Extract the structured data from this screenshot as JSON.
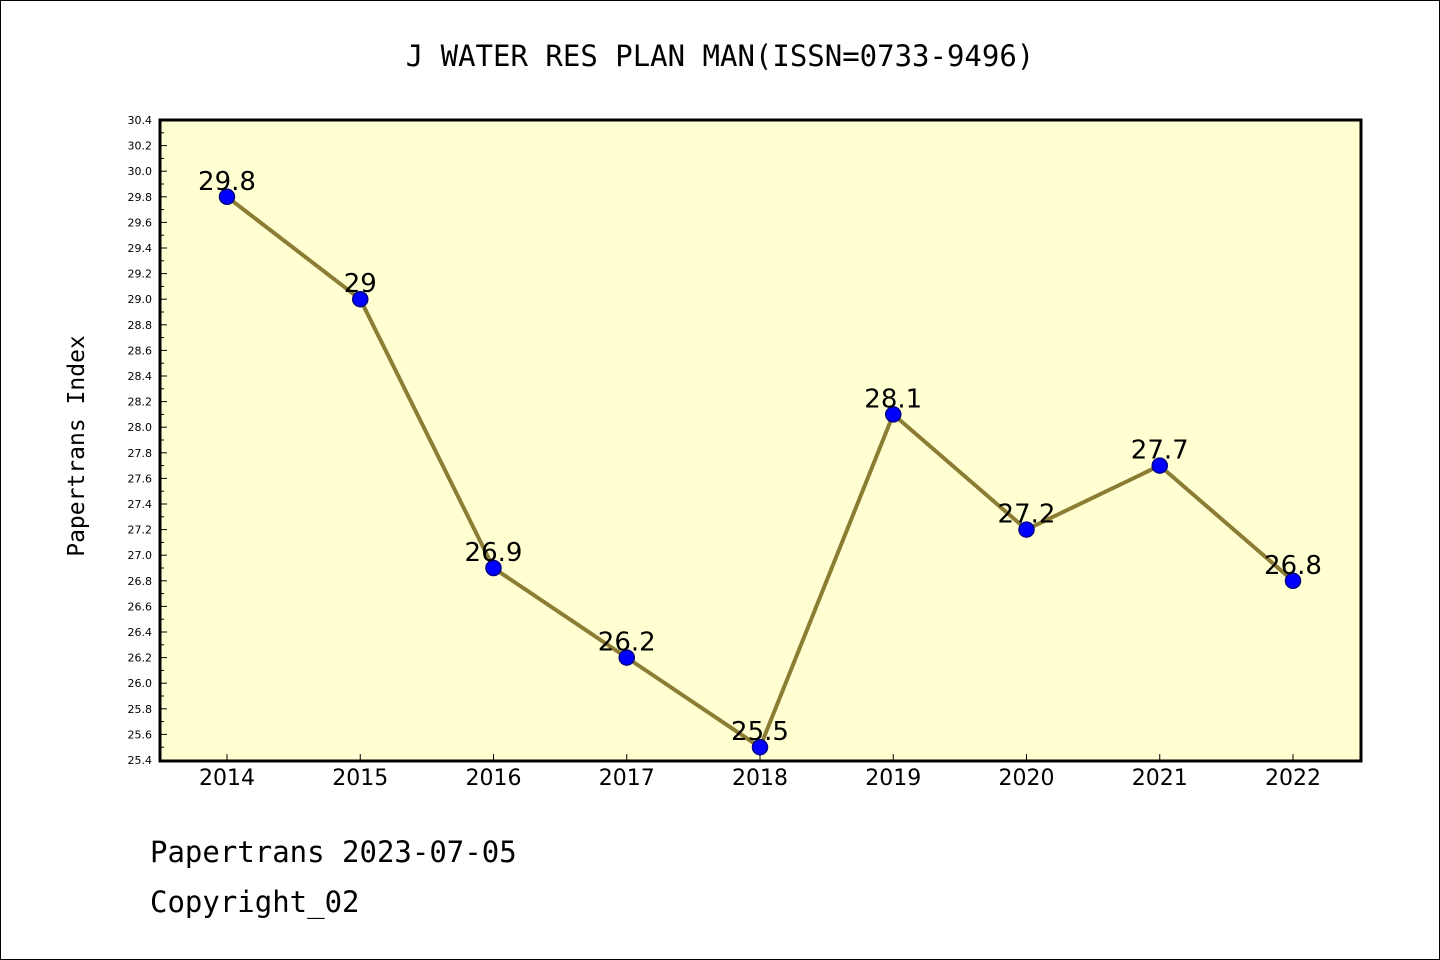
{
  "colors": {
    "plot_background": "#ffffd2",
    "line": "#8b7d34",
    "marker": "#0000ff",
    "marker_edge": "#00008b",
    "axis": "#000000"
  },
  "footer": {
    "date_text": "Papertrans 2023-07-05",
    "copyright_text": "Copyright_02"
  },
  "chart_data": {
    "type": "line",
    "title": "J WATER RES PLAN MAN(ISSN=0733-9496)",
    "xlabel": "",
    "ylabel": "Papertrans Index",
    "categories": [
      "2014",
      "2015",
      "2016",
      "2017",
      "2018",
      "2019",
      "2020",
      "2021",
      "2022"
    ],
    "series": [
      {
        "values": [
          29.8,
          29.0,
          26.9,
          26.2,
          25.5,
          28.1,
          27.2,
          27.7,
          26.8
        ],
        "data_labels": [
          "29.8",
          "29",
          "26.9",
          "26.2",
          "25.5",
          "28.1",
          "27.2",
          "27.7",
          "26.8"
        ]
      }
    ],
    "ylim": [
      25.4,
      30.4
    ],
    "yticks": [
      "25.4",
      "25.6",
      "25.8",
      "26.0",
      "26.2",
      "26.4",
      "26.6",
      "26.8",
      "27.0",
      "27.2",
      "27.4",
      "27.6",
      "27.8",
      "28.0",
      "28.2",
      "28.4",
      "28.6",
      "28.8",
      "29.0",
      "29.2",
      "29.4",
      "29.6",
      "29.8",
      "30.0",
      "30.2",
      "30.4"
    ],
    "grid": false,
    "legend": "none"
  }
}
